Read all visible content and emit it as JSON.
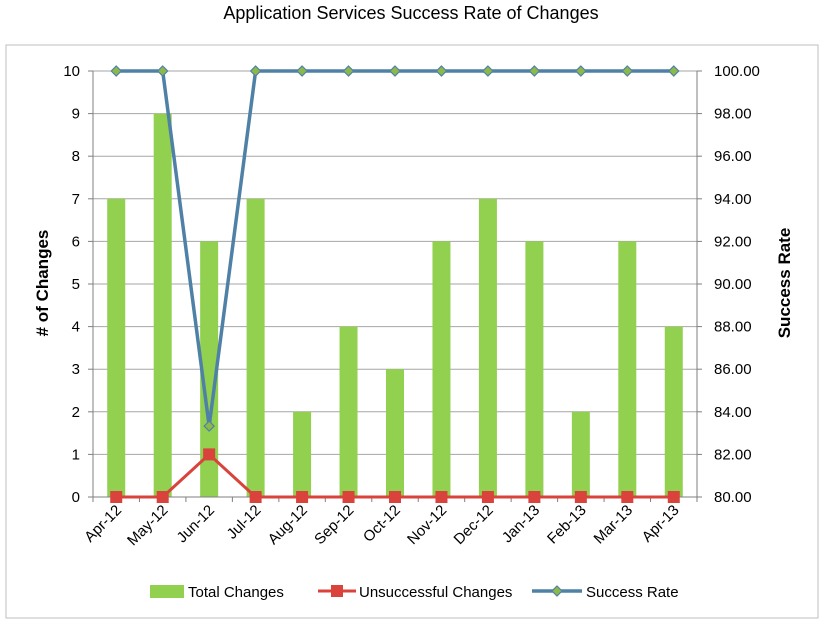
{
  "chart_data": {
    "type": "bar",
    "title": "Application Services Success Rate of Changes",
    "categories": [
      "Apr-12",
      "May-12",
      "Jun-12",
      "Jul-12",
      "Aug-12",
      "Sep-12",
      "Oct-12",
      "Nov-12",
      "Dec-12",
      "Jan-13",
      "Feb-13",
      "Mar-13",
      "Apr-13"
    ],
    "series": [
      {
        "name": "Total Changes",
        "type": "bar",
        "axis": "left",
        "color": "#92D050",
        "values": [
          7,
          9,
          6,
          7,
          2,
          4,
          3,
          6,
          7,
          6,
          2,
          6,
          4
        ]
      },
      {
        "name": "Unsuccessful Changes",
        "type": "line",
        "axis": "left",
        "color": "#D9433B",
        "marker": "square",
        "values": [
          0,
          0,
          1,
          0,
          0,
          0,
          0,
          0,
          0,
          0,
          0,
          0,
          0
        ]
      },
      {
        "name": "Success Rate",
        "type": "line",
        "axis": "right",
        "color": "#4F81A6",
        "marker": "diamond",
        "marker_color": "#8DB84A",
        "values": [
          100,
          100,
          83.33,
          100,
          100,
          100,
          100,
          100,
          100,
          100,
          100,
          100,
          100
        ]
      }
    ],
    "ylabel": "# of Changes",
    "y2label": "Success Rate",
    "ylim": [
      0,
      10
    ],
    "y2lim": [
      80,
      100
    ],
    "yticks": [
      "0",
      "1",
      "2",
      "3",
      "4",
      "5",
      "6",
      "7",
      "8",
      "9",
      "10"
    ],
    "y2ticks": [
      "80.00",
      "82.00",
      "84.00",
      "86.00",
      "88.00",
      "90.00",
      "92.00",
      "94.00",
      "96.00",
      "98.00",
      "100.00"
    ],
    "grid": true,
    "legend_position": "bottom",
    "legend": [
      "Total Changes",
      "Unsuccessful Changes",
      "Success Rate"
    ]
  }
}
